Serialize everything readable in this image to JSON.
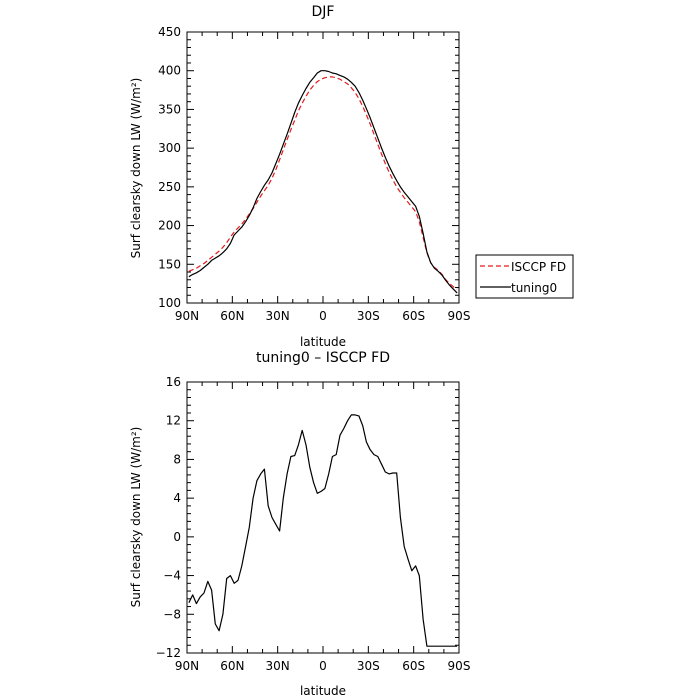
{
  "chart_data": [
    {
      "type": "line",
      "title": "DJF",
      "xlabel": "latitude",
      "ylabel": "Surf clearsky down LW (W/m²)",
      "xticks": [
        "90N",
        "60N",
        "30N",
        "0",
        "30S",
        "60S",
        "90S"
      ],
      "yticks": [
        "100",
        "150",
        "200",
        "250",
        "300",
        "350",
        "400",
        "450"
      ],
      "xlim": [
        -90,
        90
      ],
      "ylim": [
        100,
        450
      ],
      "legend_position": "outside-right",
      "x": [
        -88.75,
        -86.25,
        -83.75,
        -81.25,
        -78.75,
        -76.25,
        -73.75,
        -71.25,
        -68.75,
        -66.25,
        -63.75,
        -61.25,
        -58.75,
        -56.25,
        -53.75,
        -51.25,
        -48.75,
        -46.25,
        -43.75,
        -41.25,
        -38.75,
        -36.25,
        -33.75,
        -31.25,
        -28.75,
        -26.25,
        -23.75,
        -21.25,
        -18.75,
        -16.25,
        -13.75,
        -11.25,
        -8.75,
        -6.25,
        -3.75,
        -1.25,
        1.25,
        3.75,
        6.25,
        8.75,
        11.25,
        13.75,
        16.25,
        18.75,
        21.25,
        23.75,
        26.25,
        28.75,
        31.25,
        33.75,
        36.25,
        38.75,
        41.25,
        43.75,
        46.25,
        48.75,
        51.25,
        53.75,
        56.25,
        58.75,
        61.25,
        63.75,
        66.25,
        68.75,
        71.25,
        73.75,
        76.25,
        78.75,
        81.25,
        83.75,
        86.25,
        88.75
      ],
      "series": [
        {
          "name": "ISCCP FD",
          "color": "#e31a1c",
          "dash": true,
          "values": [
            141,
            143,
            145,
            148,
            151,
            155,
            159,
            163,
            167,
            172,
            178,
            185,
            192,
            197,
            202,
            208,
            215,
            222,
            230,
            238,
            245,
            252,
            261,
            272,
            285,
            298,
            311,
            324,
            336,
            348,
            358,
            367,
            375,
            381,
            386,
            389,
            391,
            392,
            392,
            391,
            389,
            386,
            383,
            378,
            372,
            364,
            354,
            343,
            331,
            318,
            305,
            292,
            280,
            269,
            259,
            250,
            243,
            236,
            230,
            224,
            218,
            205,
            185,
            165,
            152,
            146,
            142,
            137,
            130,
            125,
            121,
            118
          ]
        },
        {
          "name": "tuning0",
          "color": "#000000",
          "dash": false,
          "values": [
            134,
            137,
            139,
            142,
            146,
            150,
            155,
            158,
            161,
            165,
            170,
            177,
            188,
            193,
            198,
            205,
            213,
            223,
            235,
            244,
            252,
            259,
            268,
            280,
            292,
            305,
            318,
            332,
            346,
            358,
            368,
            377,
            385,
            391,
            397,
            400,
            400,
            399,
            397,
            396,
            394,
            392,
            389,
            385,
            380,
            372,
            362,
            351,
            339,
            326,
            313,
            300,
            288,
            277,
            267,
            258,
            250,
            243,
            237,
            231,
            225,
            212,
            190,
            166,
            152,
            145,
            141,
            136,
            129,
            123,
            118,
            113
          ]
        }
      ]
    },
    {
      "type": "line",
      "title": "tuning0 – ISCCP FD",
      "xlabel": "latitude",
      "ylabel": "Surf clearsky down LW (W/m²)",
      "xticks": [
        "90N",
        "60N",
        "30N",
        "0",
        "30S",
        "60S",
        "90S"
      ],
      "yticks": [
        "−12",
        "−8",
        "−4",
        "0",
        "4",
        "8",
        "12",
        "16"
      ],
      "xlim": [
        -90,
        90
      ],
      "ylim": [
        -12,
        16
      ],
      "x": [
        -88.75,
        -86.25,
        -83.75,
        -81.25,
        -78.75,
        -76.25,
        -73.75,
        -71.25,
        -68.75,
        -66.25,
        -63.75,
        -61.25,
        -58.75,
        -56.25,
        -53.75,
        -51.25,
        -48.75,
        -46.25,
        -43.75,
        -41.25,
        -38.75,
        -36.25,
        -33.75,
        -31.25,
        -28.75,
        -26.25,
        -23.75,
        -21.25,
        -18.75,
        -16.25,
        -13.75,
        -11.25,
        -8.75,
        -6.25,
        -3.75,
        -1.25,
        1.25,
        3.75,
        6.25,
        8.75,
        11.25,
        13.75,
        16.25,
        18.75,
        21.25,
        23.75,
        26.25,
        28.75,
        31.25,
        33.75,
        36.25,
        38.75,
        41.25,
        43.75,
        46.25,
        48.75,
        51.25,
        53.75,
        56.25,
        58.75,
        61.25,
        63.75,
        66.25,
        68.75,
        71.25,
        73.75,
        76.25,
        78.75,
        81.25,
        83.75,
        86.25,
        88.75
      ],
      "series": [
        {
          "color": "#000000",
          "values": [
            -6.8,
            -6.0,
            -6.9,
            -6.2,
            -5.8,
            -4.6,
            -5.5,
            -9.0,
            -9.7,
            -8.0,
            -4.3,
            -4.0,
            -4.8,
            -4.5,
            -3.0,
            -1.0,
            1.0,
            4.0,
            5.8,
            6.5,
            7.0,
            3.2,
            2.0,
            1.3,
            0.6,
            4.0,
            6.5,
            8.3,
            8.4,
            9.5,
            11.0,
            9.5,
            7.2,
            5.6,
            4.5,
            4.7,
            5.0,
            6.5,
            8.3,
            8.5,
            10.5,
            11.2,
            12.0,
            12.6,
            12.6,
            12.5,
            11.5,
            9.8,
            9.0,
            8.5,
            8.3,
            7.5,
            6.7,
            6.5,
            6.6,
            6.6,
            2.0,
            -1.0,
            -2.3,
            -3.5,
            -3.0,
            -4.0,
            -8.5,
            -11.3,
            -11.3,
            -11.3,
            -11.3,
            -11.3,
            -11.3,
            -11.3,
            -11.3,
            -11.3
          ]
        }
      ]
    }
  ]
}
